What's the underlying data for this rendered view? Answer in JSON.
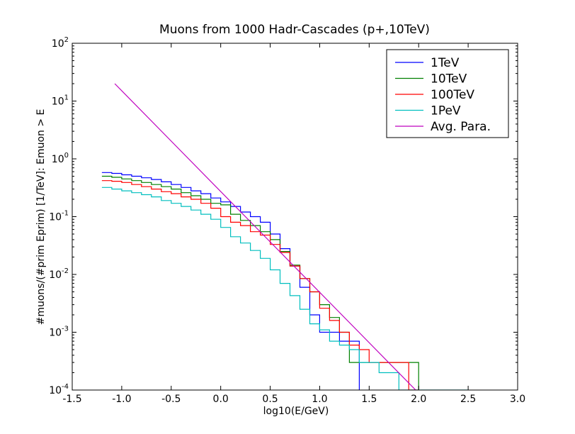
{
  "chart_data": {
    "type": "line",
    "title": "Muons from 1000 Hadr-Cascades (p+,10TeV)",
    "xlabel": "log10(E/GeV)",
    "ylabel": "#muons/(#prim Eprim) [1/TeV]: Emuon > E",
    "xlim": [
      -1.5,
      3.0
    ],
    "ylim_log10": [
      -4,
      2
    ],
    "yscale": "log",
    "grid": false,
    "legend_position": "top-right",
    "x_ticks": [
      "-1.5",
      "-1.0",
      "-0.5",
      "0.0",
      "0.5",
      "1.0",
      "1.5",
      "2.0",
      "2.5",
      "3.0"
    ],
    "y_ticks": [
      {
        "base": "10",
        "exp": "-4"
      },
      {
        "base": "10",
        "exp": "-3"
      },
      {
        "base": "10",
        "exp": "-2"
      },
      {
        "base": "10",
        "exp": "-1"
      },
      {
        "base": "10",
        "exp": "0"
      },
      {
        "base": "10",
        "exp": "1"
      },
      {
        "base": "10",
        "exp": "2"
      }
    ],
    "series": [
      {
        "name": "1TeV",
        "color": "#0000ff",
        "style": "step",
        "edges": [
          -1.2,
          -1.1,
          -1.0,
          -0.9,
          -0.8,
          -0.7,
          -0.6,
          -0.5,
          -0.4,
          -0.3,
          -0.2,
          -0.1,
          0.0,
          0.1,
          0.2,
          0.3,
          0.4,
          0.5,
          0.6,
          0.7,
          0.8,
          0.9,
          1.0,
          1.1,
          1.2,
          1.3,
          1.4
        ],
        "values": [
          0.58,
          0.56,
          0.53,
          0.5,
          0.47,
          0.44,
          0.4,
          0.36,
          0.32,
          0.28,
          0.25,
          0.21,
          0.18,
          0.15,
          0.12,
          0.1,
          0.08,
          0.05,
          0.028,
          0.014,
          0.006,
          0.002,
          0.001,
          0.001,
          0.0007,
          0.0007
        ]
      },
      {
        "name": "10TeV",
        "color": "#008000",
        "style": "step",
        "edges": [
          -1.2,
          -1.1,
          -1.0,
          -0.9,
          -0.8,
          -0.7,
          -0.6,
          -0.5,
          -0.4,
          -0.3,
          -0.2,
          -0.1,
          0.0,
          0.1,
          0.2,
          0.3,
          0.4,
          0.5,
          0.6,
          0.7,
          0.8,
          0.9,
          1.0,
          1.1,
          1.2,
          1.3,
          1.4,
          1.5,
          1.6,
          1.7,
          1.8,
          1.9,
          2.0
        ],
        "values": [
          0.5,
          0.48,
          0.45,
          0.42,
          0.39,
          0.36,
          0.33,
          0.3,
          0.26,
          0.23,
          0.2,
          0.17,
          0.16,
          0.11,
          0.086,
          0.07,
          0.055,
          0.04,
          0.025,
          0.0145,
          0.0085,
          0.005,
          0.003,
          0.0018,
          0.001,
          0.0003,
          0.0003,
          0.0003,
          0.0003,
          0.0003,
          0.0003,
          0.0003
        ]
      },
      {
        "name": "100TeV",
        "color": "#ff0000",
        "style": "step",
        "edges": [
          -1.2,
          -1.1,
          -1.0,
          -0.9,
          -0.8,
          -0.7,
          -0.6,
          -0.5,
          -0.4,
          -0.3,
          -0.2,
          -0.1,
          0.0,
          0.1,
          0.2,
          0.3,
          0.4,
          0.5,
          0.6,
          0.7,
          0.8,
          0.9,
          1.0,
          1.1,
          1.2,
          1.3,
          1.4,
          1.5,
          1.6,
          1.7,
          1.8,
          1.9,
          2.0
        ],
        "values": [
          0.42,
          0.41,
          0.39,
          0.36,
          0.33,
          0.3,
          0.27,
          0.25,
          0.22,
          0.2,
          0.17,
          0.14,
          0.1,
          0.08,
          0.07,
          0.055,
          0.048,
          0.033,
          0.024,
          0.014,
          0.0085,
          0.005,
          0.0026,
          0.0016,
          0.001,
          0.0006,
          0.0005,
          0.0003,
          0.0003,
          0.0003,
          0.0003,
          0.0001
        ]
      },
      {
        "name": "1PeV",
        "color": "#00bfbf",
        "style": "step",
        "edges": [
          -1.2,
          -1.1,
          -1.0,
          -0.9,
          -0.8,
          -0.7,
          -0.6,
          -0.5,
          -0.4,
          -0.3,
          -0.2,
          -0.1,
          0.0,
          0.1,
          0.2,
          0.3,
          0.4,
          0.5,
          0.6,
          0.7,
          0.8,
          0.9,
          1.0,
          1.1,
          1.2,
          1.3,
          1.4,
          1.5,
          1.6,
          1.7,
          1.8,
          1.9,
          2.0,
          2.1,
          2.2,
          2.3,
          2.4,
          2.5
        ],
        "values": [
          0.32,
          0.3,
          0.28,
          0.26,
          0.24,
          0.22,
          0.19,
          0.17,
          0.15,
          0.13,
          0.11,
          0.09,
          0.065,
          0.045,
          0.035,
          0.026,
          0.019,
          0.012,
          0.007,
          0.0043,
          0.0025,
          0.0014,
          0.0011,
          0.0007,
          0.0006,
          0.0005,
          0.0003,
          0.0003,
          0.0002,
          0.0002,
          0.0001,
          0.0001,
          0.0001,
          0.0001,
          0.0001,
          0.0001,
          0.0001
        ]
      },
      {
        "name": "Avg. Para.",
        "color": "#bf00bf",
        "style": "line",
        "x": [
          -1.07,
          1.97
        ],
        "y": [
          20,
          0.0001
        ]
      }
    ]
  }
}
